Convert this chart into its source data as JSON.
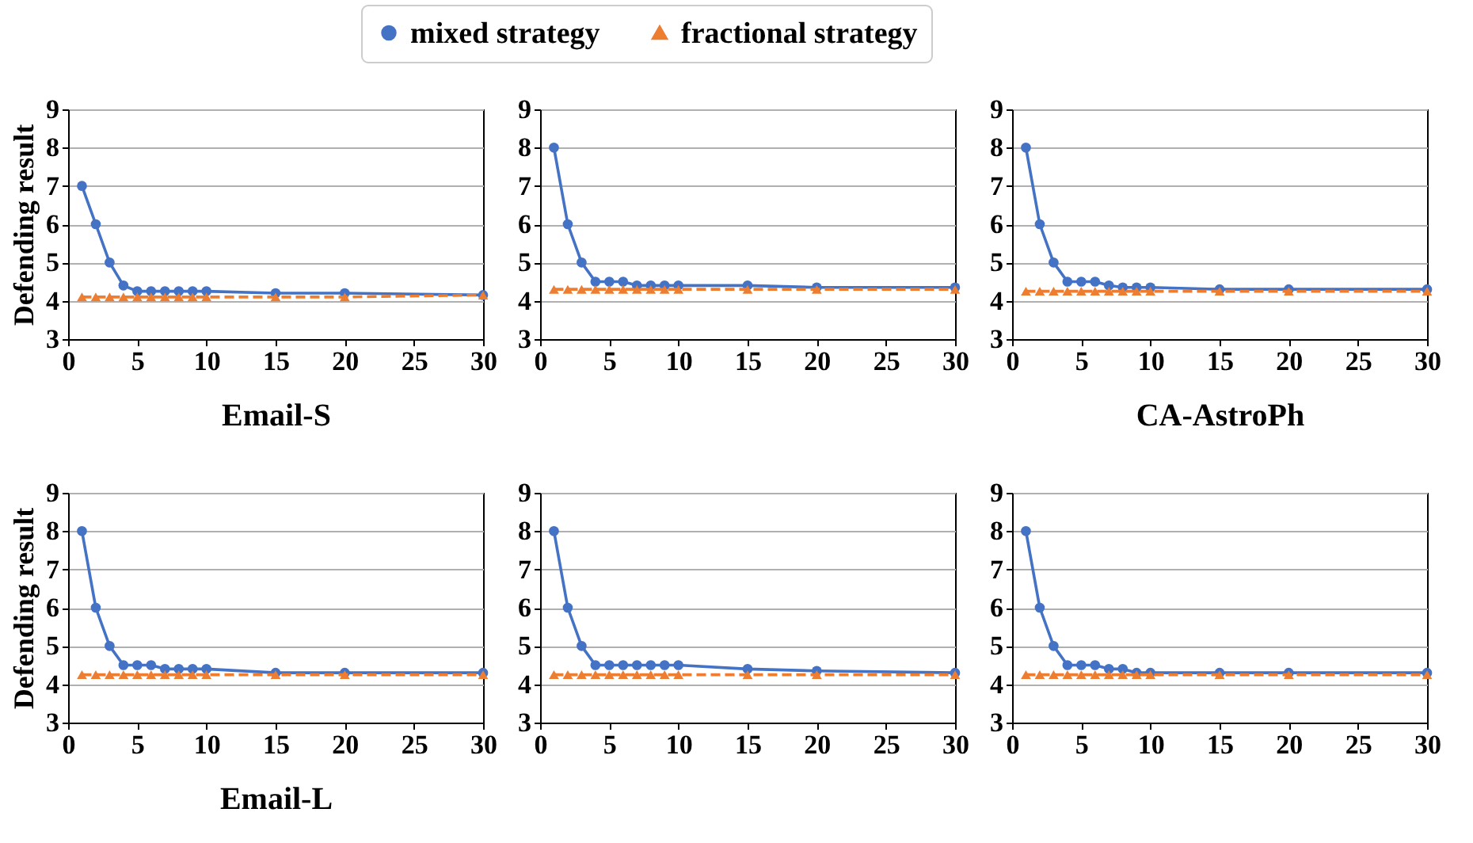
{
  "chart_data": [
    {
      "type": "line",
      "ylabel": "Defending result",
      "xlabel": "Email-S",
      "x": [
        1,
        2,
        3,
        4,
        5,
        6,
        7,
        8,
        9,
        10,
        15,
        20,
        30
      ],
      "xlim": [
        0,
        30
      ],
      "xticks": [
        0,
        5,
        10,
        15,
        20,
        25,
        30
      ],
      "ylim": [
        3,
        9
      ],
      "yticks": [
        3,
        4,
        5,
        6,
        7,
        8,
        9
      ],
      "grid": "y",
      "legend": "top",
      "series": [
        {
          "name": "mixed strategy",
          "color": "#4472c4",
          "marker": "circle",
          "line_style": "solid",
          "values": [
            7,
            6,
            5,
            4.4,
            4.25,
            4.25,
            4.25,
            4.25,
            4.25,
            4.25,
            4.2,
            4.2,
            4.15
          ]
        },
        {
          "name": "fractional strategy",
          "color": "#ed7d31",
          "marker": "triangle",
          "line_style": "dashed",
          "values": [
            4.1,
            4.1,
            4.1,
            4.1,
            4.1,
            4.1,
            4.1,
            4.1,
            4.1,
            4.1,
            4.1,
            4.1,
            4.15
          ]
        }
      ]
    },
    {
      "type": "line",
      "x": [
        1,
        2,
        3,
        4,
        5,
        6,
        7,
        8,
        9,
        10,
        15,
        20,
        30
      ],
      "xlim": [
        0,
        30
      ],
      "xticks": [
        0,
        5,
        10,
        15,
        20,
        25,
        30
      ],
      "ylim": [
        3,
        9
      ],
      "yticks": [
        3,
        4,
        5,
        6,
        7,
        8,
        9
      ],
      "grid": "y",
      "series": [
        {
          "name": "mixed strategy",
          "color": "#4472c4",
          "marker": "circle",
          "line_style": "solid",
          "values": [
            8,
            6,
            5,
            4.5,
            4.5,
            4.5,
            4.4,
            4.4,
            4.4,
            4.4,
            4.4,
            4.35,
            4.35
          ]
        },
        {
          "name": "fractional strategy",
          "color": "#ed7d31",
          "marker": "triangle",
          "line_style": "dashed",
          "values": [
            4.3,
            4.3,
            4.3,
            4.3,
            4.3,
            4.3,
            4.3,
            4.3,
            4.3,
            4.3,
            4.3,
            4.3,
            4.3
          ]
        }
      ]
    },
    {
      "type": "line",
      "xlabel": "CA-AstroPh",
      "x": [
        1,
        2,
        3,
        4,
        5,
        6,
        7,
        8,
        9,
        10,
        15,
        20,
        30
      ],
      "xlim": [
        0,
        30
      ],
      "xticks": [
        0,
        5,
        10,
        15,
        20,
        25,
        30
      ],
      "ylim": [
        3,
        9
      ],
      "yticks": [
        3,
        4,
        5,
        6,
        7,
        8,
        9
      ],
      "grid": "y",
      "series": [
        {
          "name": "mixed strategy",
          "color": "#4472c4",
          "marker": "circle",
          "line_style": "solid",
          "values": [
            8,
            6,
            5,
            4.5,
            4.5,
            4.5,
            4.4,
            4.35,
            4.35,
            4.35,
            4.3,
            4.3,
            4.3
          ]
        },
        {
          "name": "fractional strategy",
          "color": "#ed7d31",
          "marker": "triangle",
          "line_style": "dashed",
          "values": [
            4.25,
            4.25,
            4.25,
            4.25,
            4.25,
            4.25,
            4.25,
            4.25,
            4.25,
            4.25,
            4.25,
            4.25,
            4.25
          ]
        }
      ]
    },
    {
      "type": "line",
      "ylabel": "Defending result",
      "xlabel": "Email-L",
      "x": [
        1,
        2,
        3,
        4,
        5,
        6,
        7,
        8,
        9,
        10,
        15,
        20,
        30
      ],
      "xlim": [
        0,
        30
      ],
      "xticks": [
        0,
        5,
        10,
        15,
        20,
        25,
        30
      ],
      "ylim": [
        3,
        9
      ],
      "yticks": [
        3,
        4,
        5,
        6,
        7,
        8,
        9
      ],
      "grid": "y",
      "series": [
        {
          "name": "mixed strategy",
          "color": "#4472c4",
          "marker": "circle",
          "line_style": "solid",
          "values": [
            8,
            6,
            5,
            4.5,
            4.5,
            4.5,
            4.4,
            4.4,
            4.4,
            4.4,
            4.3,
            4.3,
            4.3
          ]
        },
        {
          "name": "fractional strategy",
          "color": "#ed7d31",
          "marker": "triangle",
          "line_style": "dashed",
          "values": [
            4.25,
            4.25,
            4.25,
            4.25,
            4.25,
            4.25,
            4.25,
            4.25,
            4.25,
            4.25,
            4.25,
            4.25,
            4.25
          ]
        }
      ]
    },
    {
      "type": "line",
      "x": [
        1,
        2,
        3,
        4,
        5,
        6,
        7,
        8,
        9,
        10,
        15,
        20,
        30
      ],
      "xlim": [
        0,
        30
      ],
      "xticks": [
        0,
        5,
        10,
        15,
        20,
        25,
        30
      ],
      "ylim": [
        3,
        9
      ],
      "yticks": [
        3,
        4,
        5,
        6,
        7,
        8,
        9
      ],
      "grid": "y",
      "series": [
        {
          "name": "mixed strategy",
          "color": "#4472c4",
          "marker": "circle",
          "line_style": "solid",
          "values": [
            8,
            6,
            5,
            4.5,
            4.5,
            4.5,
            4.5,
            4.5,
            4.5,
            4.5,
            4.4,
            4.35,
            4.3
          ]
        },
        {
          "name": "fractional strategy",
          "color": "#ed7d31",
          "marker": "triangle",
          "line_style": "dashed",
          "values": [
            4.25,
            4.25,
            4.25,
            4.25,
            4.25,
            4.25,
            4.25,
            4.25,
            4.25,
            4.25,
            4.25,
            4.25,
            4.25
          ]
        }
      ]
    },
    {
      "type": "line",
      "x": [
        1,
        2,
        3,
        4,
        5,
        6,
        7,
        8,
        9,
        10,
        15,
        20,
        30
      ],
      "xlim": [
        0,
        30
      ],
      "xticks": [
        0,
        5,
        10,
        15,
        20,
        25,
        30
      ],
      "ylim": [
        3,
        9
      ],
      "yticks": [
        3,
        4,
        5,
        6,
        7,
        8,
        9
      ],
      "grid": "y",
      "series": [
        {
          "name": "mixed strategy",
          "color": "#4472c4",
          "marker": "circle",
          "line_style": "solid",
          "values": [
            8,
            6,
            5,
            4.5,
            4.5,
            4.5,
            4.4,
            4.4,
            4.3,
            4.3,
            4.3,
            4.3,
            4.3
          ]
        },
        {
          "name": "fractional strategy",
          "color": "#ed7d31",
          "marker": "triangle",
          "line_style": "dashed",
          "values": [
            4.25,
            4.25,
            4.25,
            4.25,
            4.25,
            4.25,
            4.25,
            4.25,
            4.25,
            4.25,
            4.25,
            4.25,
            4.25
          ]
        }
      ]
    }
  ]
}
